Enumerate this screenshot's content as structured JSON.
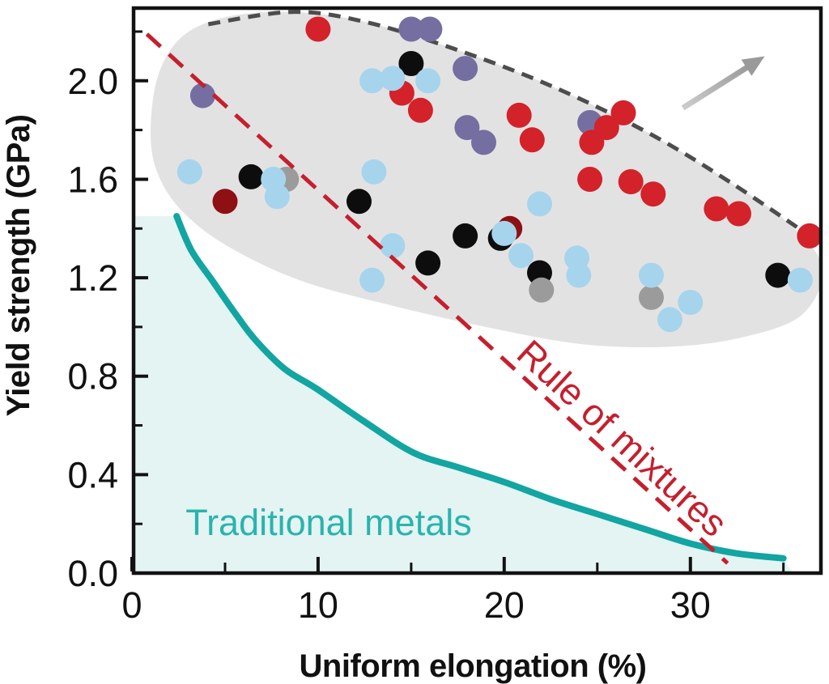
{
  "figure": {
    "background": "#ffffff",
    "frame_color": "#121212",
    "tick_label_color": "#111111"
  },
  "chart_data": {
    "type": "scatter",
    "title": "",
    "xlabel": "Uniform elongation (%)",
    "ylabel": "Yield strength (GPa)",
    "xlim": [
      0,
      37.1
    ],
    "ylim": [
      0,
      2.302
    ],
    "x_major_ticks": [
      0,
      10,
      20,
      30
    ],
    "x_minor_ticks": [
      5,
      15,
      25,
      35
    ],
    "y_major_ticks": [
      0.0,
      0.4,
      0.8,
      1.2,
      1.6,
      2.0
    ],
    "y_minor_ticks": [
      0.2,
      0.6,
      1.0,
      1.4,
      1.8,
      2.2
    ],
    "grid": false,
    "marker_radius_px": 15.5,
    "series": [
      {
        "name": "purple",
        "color": "#746fa0",
        "points": [
          [
            3.8,
            1.94
          ],
          [
            15.0,
            2.21
          ],
          [
            16.0,
            2.21
          ],
          [
            17.9,
            2.05
          ],
          [
            18.0,
            1.81
          ],
          [
            18.9,
            1.75
          ],
          [
            24.6,
            1.83
          ]
        ]
      },
      {
        "name": "black",
        "color": "#0d0d0d",
        "points": [
          [
            6.4,
            1.61
          ],
          [
            15.0,
            2.07
          ],
          [
            12.2,
            1.51
          ],
          [
            15.9,
            1.26
          ],
          [
            17.9,
            1.37
          ],
          [
            19.8,
            1.36
          ],
          [
            21.9,
            1.22
          ],
          [
            34.7,
            1.21
          ]
        ]
      },
      {
        "name": "gray",
        "color": "#9b9b9b",
        "points": [
          [
            8.3,
            1.6
          ],
          [
            22.0,
            1.15
          ],
          [
            27.9,
            1.12
          ]
        ]
      },
      {
        "name": "dark-red",
        "color": "#8e1013",
        "points": [
          [
            5.0,
            1.51
          ],
          [
            20.3,
            1.4
          ]
        ]
      },
      {
        "name": "red",
        "color": "#d3222a",
        "points": [
          [
            10.0,
            2.21
          ],
          [
            14.5,
            1.95
          ],
          [
            15.5,
            1.88
          ],
          [
            20.8,
            1.86
          ],
          [
            21.5,
            1.76
          ],
          [
            26.4,
            1.87
          ],
          [
            25.5,
            1.81
          ],
          [
            24.7,
            1.75
          ],
          [
            24.6,
            1.6
          ],
          [
            26.8,
            1.59
          ],
          [
            28.0,
            1.54
          ],
          [
            31.4,
            1.48
          ],
          [
            32.6,
            1.46
          ],
          [
            36.4,
            1.37
          ]
        ]
      },
      {
        "name": "light-blue",
        "color": "#a6d4ed",
        "points": [
          [
            3.1,
            1.63
          ],
          [
            7.6,
            1.6
          ],
          [
            7.8,
            1.53
          ],
          [
            12.9,
            2.0
          ],
          [
            14.0,
            2.01
          ],
          [
            15.9,
            2.0
          ],
          [
            13.0,
            1.63
          ],
          [
            21.9,
            1.5
          ],
          [
            20.0,
            1.38
          ],
          [
            20.9,
            1.29
          ],
          [
            14.0,
            1.33
          ],
          [
            12.9,
            1.19
          ],
          [
            23.9,
            1.28
          ],
          [
            24.0,
            1.21
          ],
          [
            27.9,
            1.21
          ],
          [
            30.0,
            1.1
          ],
          [
            28.9,
            1.03
          ],
          [
            35.9,
            1.19
          ]
        ]
      }
    ],
    "regions": {
      "alloy_envelope": {
        "fill": "#e3e2e2",
        "border_color": "#4d4d4d",
        "border_style": "dashed",
        "outline_points": [
          [
            1.0,
            1.79
          ],
          [
            1.4,
            2.02
          ],
          [
            2.7,
            2.18
          ],
          [
            5.1,
            2.26
          ],
          [
            8.6,
            2.28
          ],
          [
            12.5,
            2.24
          ],
          [
            17.3,
            2.13
          ],
          [
            22.5,
            1.98
          ],
          [
            27.7,
            1.79
          ],
          [
            32.1,
            1.59
          ],
          [
            35.3,
            1.42
          ],
          [
            37.1,
            1.24
          ],
          [
            36.0,
            1.05
          ],
          [
            32.9,
            0.96
          ],
          [
            29.0,
            0.92
          ],
          [
            24.2,
            0.93
          ],
          [
            19.0,
            1.0
          ],
          [
            13.8,
            1.09
          ],
          [
            9.0,
            1.19
          ],
          [
            5.1,
            1.33
          ],
          [
            2.7,
            1.47
          ],
          [
            1.4,
            1.62
          ]
        ],
        "dashed_border_points": [
          [
            4.1,
            2.23
          ],
          [
            8.6,
            2.28
          ],
          [
            12.5,
            2.24
          ],
          [
            17.3,
            2.13
          ],
          [
            22.5,
            1.98
          ],
          [
            27.7,
            1.79
          ],
          [
            32.1,
            1.59
          ],
          [
            36.6,
            1.36
          ]
        ]
      },
      "traditional_metals": {
        "label": "Traditional metals",
        "label_color": "#2bb3ad",
        "fill": "#e3f4f3",
        "curve_color": "#12a5a2",
        "curve_points": [
          [
            2.4,
            1.45
          ],
          [
            3.2,
            1.31
          ],
          [
            4.3,
            1.19
          ],
          [
            5.5,
            1.06
          ],
          [
            6.6,
            0.95
          ],
          [
            8.2,
            0.83
          ],
          [
            9.9,
            0.75
          ],
          [
            12.4,
            0.62
          ],
          [
            15.1,
            0.49
          ],
          [
            17.5,
            0.43
          ],
          [
            20.0,
            0.37
          ],
          [
            22.5,
            0.3
          ],
          [
            25.0,
            0.24
          ],
          [
            27.5,
            0.18
          ],
          [
            30.0,
            0.12
          ],
          [
            32.5,
            0.08
          ],
          [
            35.0,
            0.06
          ]
        ]
      }
    },
    "rule_of_mixtures": {
      "label": "Rule of mixtures",
      "color": "#c51f2e",
      "line": [
        [
          0.8,
          2.19
        ],
        [
          32.0,
          0.04
        ]
      ],
      "label_angle_deg": 42.6
    },
    "arrow": {
      "color": "#9a9a9a",
      "from": [
        29.6,
        1.89
      ],
      "to": [
        34.0,
        2.1
      ]
    }
  }
}
